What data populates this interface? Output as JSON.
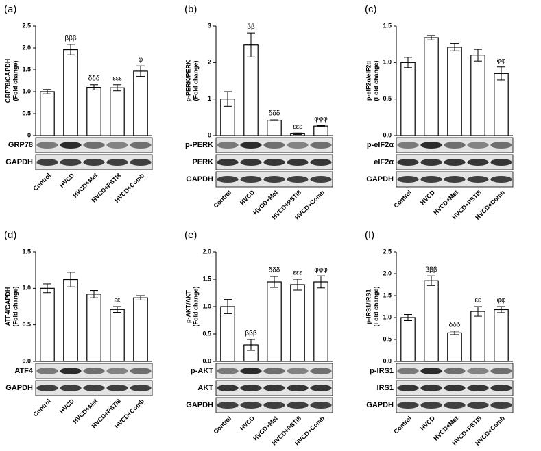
{
  "chart_data": [
    {
      "type": "bar",
      "panel": "(a)",
      "ylabel": "GRP78/GAPDH",
      "ylabel2": "(Fold change)",
      "categories": [
        "Control",
        "HVCD",
        "HVCD+Met",
        "HVCD+PSTI8",
        "HVCD+Comb"
      ],
      "values": [
        1.0,
        1.96,
        1.1,
        1.09,
        1.47
      ],
      "errors": [
        0.05,
        0.12,
        0.06,
        0.07,
        0.12
      ],
      "annotations": [
        null,
        "βββ",
        "δδδ",
        "εεε",
        "φ"
      ],
      "color": "#ffffff",
      "ylim": [
        0,
        2.5
      ],
      "yticks": [
        0,
        0.5,
        {
          "value": 1,
          "label": "1.0"
        },
        1.5,
        {
          "value": 2,
          "label": "2.0"
        },
        2.5
      ],
      "blots": [
        "GRP78",
        "GAPDH"
      ]
    },
    {
      "type": "bar",
      "panel": "(b)",
      "ylabel": "p-PERK/PERK",
      "ylabel2": "(Fold change)",
      "categories": [
        "Control",
        "HVCD",
        "HVCD+Met",
        "HVCD+PSTI8",
        "HVCD+Comb"
      ],
      "values": [
        1.0,
        2.48,
        0.42,
        0.05,
        0.26
      ],
      "errors": [
        0.2,
        0.33,
        0.01,
        0.02,
        0.02
      ],
      "annotations": [
        null,
        "ββ",
        "δδδ",
        "εεε",
        "φφφ"
      ],
      "color": "#ffffff",
      "ylim": [
        0,
        3
      ],
      "yticks": [
        0,
        1,
        2,
        3
      ],
      "blots": [
        "p-PERK",
        "PERK",
        "GAPDH"
      ]
    },
    {
      "type": "bar",
      "panel": "(c)",
      "ylabel": "p-eIF2α/eIF2α",
      "ylabel2": "(Fold change)",
      "categories": [
        "Control",
        "HVCD",
        "HVCD+Met",
        "HVCD+PSTI8",
        "HVCD+Comb"
      ],
      "values": [
        1.0,
        1.34,
        1.21,
        1.1,
        0.85
      ],
      "errors": [
        0.07,
        0.03,
        0.05,
        0.08,
        0.09
      ],
      "annotations": [
        null,
        null,
        null,
        null,
        "φφ"
      ],
      "color": "#ffffff",
      "ylim": [
        0,
        1.5
      ],
      "yticks": [
        {
          "value": 0,
          "label": "0.0"
        },
        0.5,
        {
          "value": 1,
          "label": "1.0"
        },
        1.5
      ],
      "blots": [
        "p-eIF2α",
        "eIF2α",
        "GAPDH"
      ]
    },
    {
      "type": "bar",
      "panel": "(d)",
      "ylabel": "ATF4/GAPDH",
      "ylabel2": "(Fold change)",
      "categories": [
        "Control",
        "HVCD",
        "HVCD+Met",
        "HVCD+PSTI8",
        "HVCD+Comb"
      ],
      "values": [
        1.0,
        1.12,
        0.92,
        0.71,
        0.87
      ],
      "errors": [
        0.06,
        0.1,
        0.05,
        0.04,
        0.03
      ],
      "annotations": [
        null,
        null,
        null,
        "εε",
        null
      ],
      "color": "#ffffff",
      "ylim": [
        0,
        1.5
      ],
      "yticks": [
        {
          "value": 0,
          "label": "0.0"
        },
        0.5,
        {
          "value": 1,
          "label": "1.0"
        },
        1.5
      ],
      "blots": [
        "ATF4",
        "GAPDH"
      ]
    },
    {
      "type": "bar",
      "panel": "(e)",
      "ylabel": "p-AKT/AKT",
      "ylabel2": "(Fold change)",
      "categories": [
        "Control",
        "HVCD",
        "HVCD+Met",
        "HVCD+PSTI8",
        "HVCD+Comb"
      ],
      "values": [
        1.0,
        0.3,
        1.45,
        1.4,
        1.45
      ],
      "errors": [
        0.13,
        0.1,
        0.1,
        0.1,
        0.11
      ],
      "annotations": [
        null,
        "βββ",
        "δδδ",
        "εεε",
        "φφφ"
      ],
      "color": "#ffffff",
      "ylim": [
        0,
        2
      ],
      "yticks": [
        {
          "value": 0,
          "label": "0.0"
        },
        0.5,
        {
          "value": 1,
          "label": "1.0"
        },
        1.5,
        {
          "value": 2,
          "label": "2.0"
        }
      ],
      "blots": [
        "p-AKT",
        "AKT",
        "GAPDH"
      ]
    },
    {
      "type": "bar",
      "panel": "(f)",
      "ylabel": "p-IRS1/IRS1",
      "ylabel2": "(Fold change)",
      "categories": [
        "Control",
        "HVCD",
        "HVCD+Met",
        "HVCD+PSTI8",
        "HVCD+Comb"
      ],
      "values": [
        1.0,
        1.84,
        0.65,
        1.14,
        1.18
      ],
      "errors": [
        0.07,
        0.11,
        0.04,
        0.11,
        0.07
      ],
      "annotations": [
        null,
        "βββ",
        "δδδ",
        "εε",
        "φφ"
      ],
      "color": "#ffffff",
      "ylim": [
        0,
        2.5
      ],
      "yticks": [
        {
          "value": 0,
          "label": "0.0"
        },
        0.5,
        {
          "value": 1,
          "label": "1.0"
        },
        1.5,
        {
          "value": 2,
          "label": "2.0"
        },
        2.5
      ],
      "blots": [
        "p-IRS1",
        "IRS1",
        "GAPDH"
      ]
    }
  ]
}
